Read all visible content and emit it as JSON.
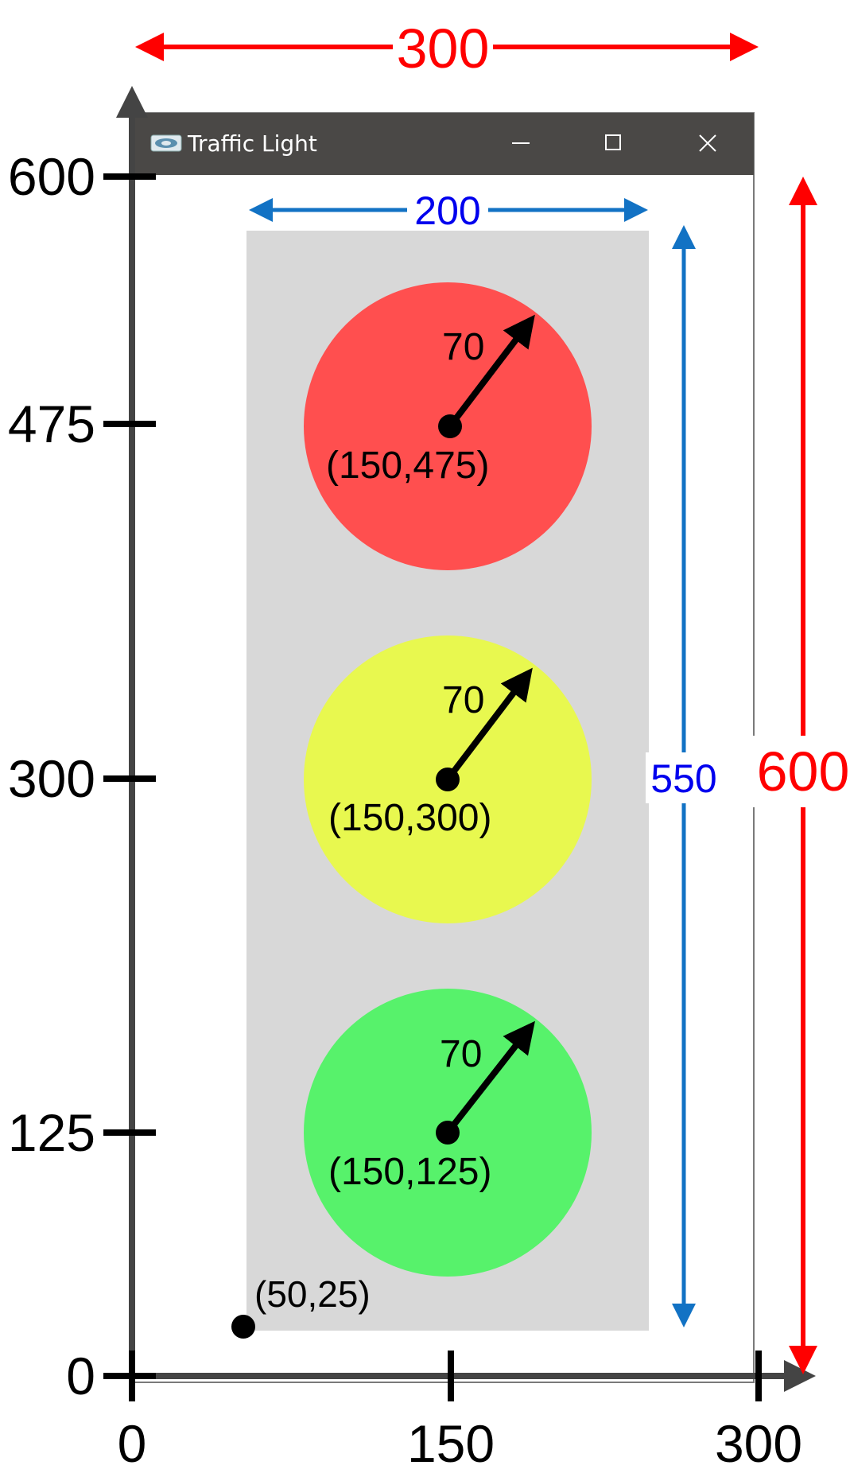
{
  "window": {
    "title": "Traffic Light",
    "icon": "app-icon",
    "controls": [
      {
        "name": "minimize",
        "glyph": "—"
      },
      {
        "name": "maximize",
        "glyph": "☐"
      },
      {
        "name": "close",
        "glyph": "✕"
      }
    ]
  },
  "dimensions": {
    "window_width": "300",
    "window_height": "600",
    "panel_width": "200",
    "panel_height": "550"
  },
  "axes": {
    "x_ticks": [
      "0",
      "150",
      "300"
    ],
    "y_ticks": [
      "0",
      "125",
      "300",
      "475",
      "600"
    ]
  },
  "panel": {
    "origin_label": "(50,25)"
  },
  "lights": [
    {
      "name": "red",
      "color": "#ff4f4f",
      "center_label": "(150,475)",
      "radius_label": "70"
    },
    {
      "name": "yellow",
      "color": "#e8f84f",
      "center_label": "(150,300)",
      "radius_label": "70"
    },
    {
      "name": "green",
      "color": "#57f26b",
      "center_label": "(150,125)",
      "radius_label": "70"
    }
  ],
  "colors": {
    "red_dim": "#ff0000",
    "blue_dim": "#1272c4",
    "blue_text": "#0000ee",
    "axis": "#444444",
    "titlebar": "#4a4846",
    "panel": "#d8d8d8"
  }
}
